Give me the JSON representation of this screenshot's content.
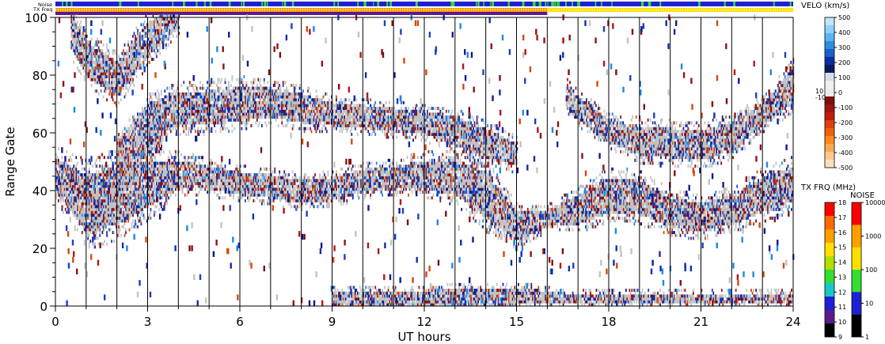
{
  "chart_data": {
    "type": "heatmap",
    "title": "",
    "xlabel": "UT hours",
    "ylabel": "Range Gate",
    "xlim": [
      0,
      24
    ],
    "ylim": [
      0,
      100
    ],
    "x_ticks": [
      0,
      3,
      6,
      9,
      12,
      15,
      18,
      21,
      24
    ],
    "y_ticks": [
      0,
      20,
      40,
      60,
      80,
      100
    ],
    "hour_gridlines": [
      1,
      2,
      3,
      4,
      5,
      6,
      7,
      8,
      9,
      10,
      11,
      12,
      13,
      14,
      15,
      16,
      17,
      18,
      19,
      20,
      21,
      22,
      23
    ],
    "top_strips": [
      {
        "label": "Noise",
        "dominant_color": "#1f1fd6",
        "accent_color": "#33dd33"
      },
      {
        "label": "TX Freq",
        "segments": [
          {
            "x0": 0,
            "x1": 16,
            "color": "#ff9f00"
          },
          {
            "x0": 16,
            "x1": 24,
            "color": "#ffe000"
          }
        ],
        "subbar_left_color": "#5a1a8c"
      }
    ],
    "ground_scatter_color": "#c2c2c2",
    "echo_bands": [
      {
        "name": "band_40",
        "points": [
          [
            0,
            45,
            6
          ],
          [
            1,
            35,
            10
          ],
          [
            2,
            38,
            10
          ],
          [
            3,
            42,
            8
          ],
          [
            4,
            45,
            5
          ],
          [
            5,
            44,
            4
          ],
          [
            6,
            42,
            4
          ],
          [
            7,
            41,
            4
          ],
          [
            8,
            39,
            4
          ],
          [
            9,
            40,
            4
          ],
          [
            10,
            43,
            4
          ],
          [
            11,
            44,
            4
          ],
          [
            12,
            45,
            5
          ],
          [
            13,
            44,
            6
          ],
          [
            14,
            38,
            8
          ],
          [
            15,
            27,
            5
          ],
          [
            16,
            30,
            3
          ],
          [
            17,
            33,
            5
          ],
          [
            18,
            38,
            6
          ],
          [
            19,
            37,
            6
          ],
          [
            20,
            32,
            5
          ],
          [
            21,
            30,
            5
          ],
          [
            22,
            33,
            5
          ],
          [
            23,
            38,
            6
          ],
          [
            24,
            42,
            6
          ]
        ]
      },
      {
        "name": "band_68",
        "points": [
          [
            2,
            52,
            5
          ],
          [
            3,
            65,
            5
          ],
          [
            4,
            68,
            6
          ],
          [
            5,
            68,
            6
          ],
          [
            6,
            70,
            6
          ],
          [
            7,
            70,
            5
          ],
          [
            8,
            68,
            5
          ],
          [
            9,
            66,
            4
          ],
          [
            10,
            65,
            4
          ],
          [
            11,
            64,
            4
          ],
          [
            12,
            63,
            4
          ],
          [
            13,
            60,
            5
          ],
          [
            14,
            56,
            5
          ],
          [
            15,
            52,
            4
          ]
        ]
      },
      {
        "name": "band_high",
        "points": [
          [
            16.6,
            72,
            4
          ],
          [
            17,
            68,
            4
          ],
          [
            18,
            60,
            4
          ],
          [
            19,
            57,
            5
          ],
          [
            20,
            56,
            5
          ],
          [
            21,
            55,
            5
          ],
          [
            22,
            58,
            5
          ],
          [
            23,
            66,
            4
          ],
          [
            24,
            76,
            6
          ]
        ]
      },
      {
        "name": "band_early",
        "points": [
          [
            0.5,
            95,
            6
          ],
          [
            1,
            85,
            6
          ],
          [
            2,
            78,
            6
          ],
          [
            3,
            92,
            6
          ],
          [
            4,
            100,
            4
          ]
        ]
      },
      {
        "name": "band_rise",
        "points": [
          [
            1.2,
            28,
            5
          ],
          [
            2,
            40,
            5
          ],
          [
            2.8,
            55,
            5
          ],
          [
            3.5,
            62,
            5
          ]
        ]
      },
      {
        "name": "band_bottom",
        "points": [
          [
            9,
            2,
            3
          ],
          [
            12,
            2,
            3
          ],
          [
            15,
            3,
            3
          ],
          [
            16.5,
            2,
            2
          ],
          [
            19,
            2,
            2
          ],
          [
            21,
            2,
            2
          ],
          [
            24,
            2,
            2
          ]
        ]
      }
    ],
    "velocity_colorbar": {
      "title": "VELO (km/s)",
      "ticks": [
        "500",
        "400",
        "300",
        "200",
        "100",
        "0",
        "-100",
        "-200",
        "-300",
        "-400",
        "-500"
      ],
      "near_zero_labels": [
        "10",
        "-10"
      ],
      "colors": [
        "#bfe6ff",
        "#8fd0ff",
        "#5bb3f5",
        "#2e8ee0",
        "#1760c8",
        "#0b2f9a",
        "#061a5e",
        "#d4dfe8",
        "#f0f0f0",
        "#ececec",
        "#7a1010",
        "#9c1414",
        "#c01c0c",
        "#e0400a",
        "#f06010",
        "#ff8a20",
        "#ffa850",
        "#ffc890",
        "#fde0c0"
      ]
    },
    "tx_freq_colorbar": {
      "title": "TX FRQ (MHz)",
      "ticks": [
        "18",
        "17",
        "16",
        "15",
        "14",
        "13",
        "12",
        "11",
        "10",
        "9"
      ],
      "colors": [
        "#ff0000",
        "#ff6a00",
        "#ff9f00",
        "#ffe000",
        "#b0e000",
        "#33dd33",
        "#18c8c8",
        "#1f1fd6",
        "#5a1a8c",
        "#000000"
      ]
    },
    "noise_colorbar": {
      "title": "NOISE",
      "ticks": [
        "10000",
        "1000",
        "100",
        "10",
        "1"
      ],
      "colors": [
        "#ff0000",
        "#ff9f00",
        "#ffe000",
        "#33dd33",
        "#1f1fd6",
        "#000000"
      ]
    },
    "velocity_palette": {
      "blue": [
        "#0b1a8c",
        "#0f2ca8",
        "#1a3fc0",
        "#1e88e5"
      ],
      "red": [
        "#7a1010",
        "#8e1212",
        "#b01616",
        "#d24a10"
      ]
    }
  }
}
